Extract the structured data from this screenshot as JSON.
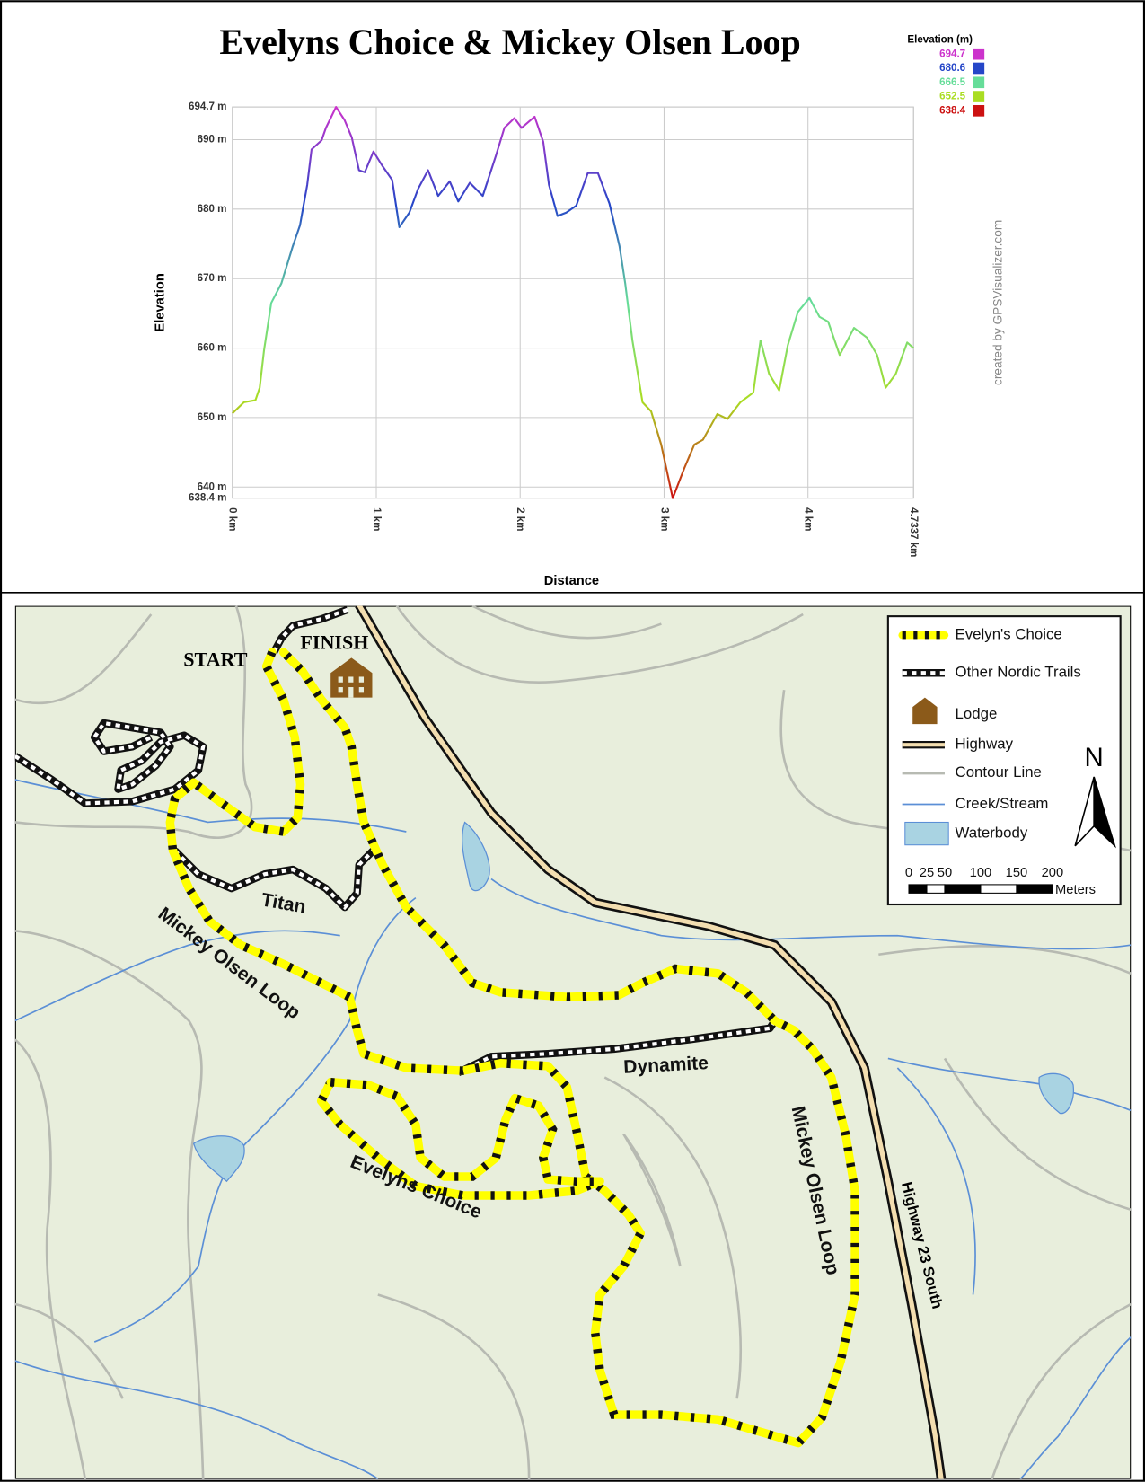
{
  "chart_data": {
    "type": "line",
    "title": "Evelyns Choice & Mickey Olsen Loop",
    "x_label": "Distance",
    "y_label": "Elevation",
    "credit": "created by GPSVisualizer.com",
    "legend_title": "Elevation (m)",
    "color_scale": {
      "values": [
        694.7,
        680.6,
        666.5,
        652.5,
        638.4
      ],
      "colors": [
        "#cc33cc",
        "#2546c8",
        "#66dd99",
        "#aadd22",
        "#cc1111"
      ]
    },
    "x": [
      0,
      0.08,
      0.16,
      0.19,
      0.22,
      0.27,
      0.34,
      0.42,
      0.47,
      0.52,
      0.55,
      0.62,
      0.65,
      0.72,
      0.78,
      0.83,
      0.88,
      0.92,
      0.98,
      1.04,
      1.11,
      1.16,
      1.23,
      1.29,
      1.36,
      1.43,
      1.51,
      1.57,
      1.65,
      1.74,
      1.83,
      1.89,
      1.96,
      2.01,
      2.1,
      2.16,
      2.2,
      2.26,
      2.32,
      2.39,
      2.47,
      2.54,
      2.62,
      2.69,
      2.73,
      2.78,
      2.85,
      2.91,
      2.98,
      3.06,
      3.14,
      3.21,
      3.27,
      3.37,
      3.44,
      3.53,
      3.62,
      3.67,
      3.73,
      3.8,
      3.86,
      3.93,
      4.01,
      4.08,
      4.14,
      4.22,
      4.32,
      4.41,
      4.48,
      4.54,
      4.61,
      4.69,
      4.7337
    ],
    "values": [
      650.6,
      652.2,
      652.5,
      654.3,
      659.7,
      666.5,
      669.3,
      674.7,
      677.7,
      683.5,
      688.6,
      689.9,
      691.7,
      694.7,
      692.8,
      690.3,
      685.6,
      685.3,
      688.3,
      686.3,
      684.2,
      677.4,
      679.5,
      682.9,
      685.6,
      681.9,
      684.0,
      681.1,
      683.8,
      681.9,
      687.6,
      691.7,
      693.1,
      691.7,
      693.3,
      689.7,
      683.5,
      679.0,
      679.5,
      680.5,
      685.2,
      685.2,
      680.8,
      674.7,
      669.3,
      661.1,
      652.2,
      650.9,
      646.1,
      638.4,
      642.7,
      646.1,
      646.8,
      650.5,
      649.8,
      652.2,
      653.6,
      661.1,
      656.3,
      653.9,
      660.4,
      665.2,
      667.2,
      664.5,
      663.8,
      659.0,
      662.9,
      661.5,
      659.0,
      654.3,
      656.3,
      660.8,
      660.0
    ],
    "xlim": [
      0,
      4.7337
    ],
    "ylim": [
      638.4,
      694.7
    ],
    "xticks": [
      {
        "value": 0,
        "label": "0 km"
      },
      {
        "value": 1,
        "label": "1 km"
      },
      {
        "value": 2,
        "label": "2 km"
      },
      {
        "value": 3,
        "label": "3 km"
      },
      {
        "value": 4,
        "label": "4 km"
      },
      {
        "value": 4.7337,
        "label": "4.7337 km"
      }
    ],
    "yticks": [
      {
        "value": 638.4,
        "label": "638.4 m"
      },
      {
        "value": 640,
        "label": "640 m"
      },
      {
        "value": 650,
        "label": "650 m"
      },
      {
        "value": 660,
        "label": "660 m"
      },
      {
        "value": 670,
        "label": "670 m"
      },
      {
        "value": 680,
        "label": "680 m"
      },
      {
        "value": 690,
        "label": "690 m"
      },
      {
        "value": 694.7,
        "label": "694.7 m"
      }
    ],
    "grid": true
  },
  "map": {
    "labels": {
      "start": "START",
      "finish": "FINISH",
      "titan": "Titan",
      "mickey_west": "Mickey Olsen Loop",
      "dynamite": "Dynamite",
      "evelyns": "Evelyns Choice",
      "mickey_east": "Mickey Olsen Loop",
      "highway": "Highway 23 South"
    },
    "legend": [
      "Evelyn's Choice",
      "Other Nordic Trails",
      "Lodge",
      "Highway",
      "Contour Line",
      "Creek/Stream",
      "Waterbody"
    ],
    "north": "N",
    "scale": {
      "ticks": [
        0,
        25,
        50,
        100,
        150,
        200
      ],
      "unit": "Meters"
    }
  }
}
